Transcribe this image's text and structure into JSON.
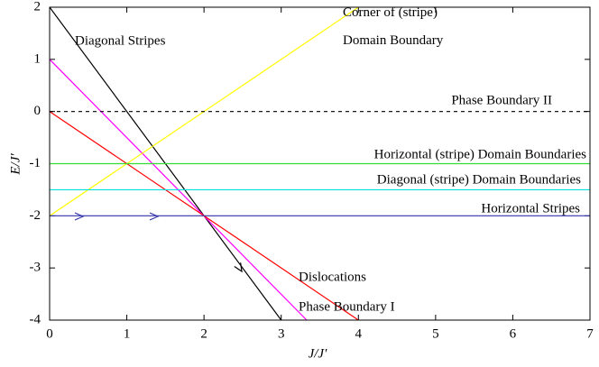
{
  "chart_data": {
    "type": "line",
    "xlabel": "J/J′",
    "ylabel": "E/J′",
    "xlim": [
      0,
      7
    ],
    "ylim": [
      -4,
      2
    ],
    "xticks": [
      0,
      1,
      2,
      3,
      4,
      5,
      6,
      7
    ],
    "yticks": [
      -4,
      -3,
      -2,
      -1,
      0,
      1,
      2
    ],
    "series": [
      {
        "name": "Diagonal Stripes",
        "color": "#000000",
        "x": [
          0,
          3
        ],
        "values": [
          2,
          -4
        ]
      },
      {
        "name": "Phase Boundary I",
        "color": "#ff00ff",
        "x": [
          0,
          3.33
        ],
        "values": [
          1,
          -4
        ]
      },
      {
        "name": "Dislocations",
        "color": "#ff0000",
        "x": [
          0,
          4
        ],
        "values": [
          0,
          -4
        ]
      },
      {
        "name": "Corner of (stripe) Domain Boundary",
        "color": "#ffff00",
        "x": [
          0,
          4
        ],
        "values": [
          -2,
          2
        ]
      },
      {
        "name": "Phase Boundary II",
        "color": "#000000",
        "dashed": true,
        "x": [
          0,
          7
        ],
        "values": [
          0,
          0
        ]
      },
      {
        "name": "Horizontal (stripe) Domain Boundaries",
        "color": "#33dd33",
        "x": [
          0,
          7
        ],
        "values": [
          -1,
          -1
        ]
      },
      {
        "name": "Diagonal (stripe) Domain Boundaries",
        "color": "#00e0e0",
        "x": [
          0,
          7
        ],
        "values": [
          -1.5,
          -1.5
        ]
      },
      {
        "name": "Horizontal Stripes",
        "color": "#3333aa",
        "x": [
          0,
          7
        ],
        "values": [
          -2,
          -2
        ]
      }
    ]
  }
}
